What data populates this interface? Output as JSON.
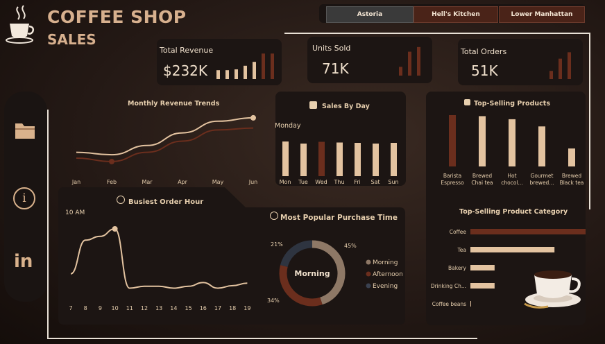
{
  "header": {
    "title": "COFFEE SHOP",
    "subtitle": "SALES"
  },
  "slicer": {
    "tabs": [
      "Astoria",
      "Hell's Kitchen",
      "Lower Manhattan"
    ],
    "selected": "Astoria"
  },
  "kpis": [
    {
      "label": "Total Revenue",
      "value": "$232K",
      "sparkline": [
        0.32,
        0.32,
        0.35,
        0.48,
        0.62,
        0.92,
        0.92
      ]
    },
    {
      "label": "Units Sold",
      "value": "71K",
      "sparkline": [
        0.3,
        0.82,
        0.98
      ]
    },
    {
      "label": "Total Orders",
      "value": "51K",
      "sparkline": [
        0.28,
        0.7,
        0.92
      ]
    }
  ],
  "nav": {
    "icons": [
      "folder-icon",
      "info-icon",
      "linkedin-icon"
    ],
    "linkedin_glyph": "in",
    "info_glyph": "i"
  },
  "colors": {
    "accent_light": "#e3c3a0",
    "accent_dark": "#6b2e1d",
    "bg": "#241915",
    "card": "#1c1513"
  },
  "chart_data": [
    {
      "type": "line",
      "title": "Monthly Revenue Trends",
      "categories": [
        "Jan",
        "Feb",
        "Mar",
        "Apr",
        "May",
        "Jun"
      ],
      "series": [
        {
          "values": [
            0.22,
            0.17,
            0.36,
            0.62,
            0.86,
            0.93
          ]
        },
        {
          "values": [
            0.1,
            0.03,
            0.22,
            0.45,
            0.68,
            0.72
          ]
        }
      ]
    },
    {
      "type": "bar",
      "title": "Sales By Day",
      "categories": [
        "Mon",
        "Tue",
        "Wed",
        "Thu",
        "Fri",
        "Sat",
        "Sun"
      ],
      "values": [
        1.0,
        0.94,
        0.99,
        0.97,
        0.96,
        0.94,
        0.96
      ],
      "highlight": "Wed",
      "tooltip_label": "Monday"
    },
    {
      "type": "bar",
      "title": "Top-Selling Products",
      "categories": [
        "Barista Espresso",
        "Brewed Chai tea",
        "Hot chocol...",
        "Gourmet brewed...",
        "Brewed Black tea"
      ],
      "category_lines": [
        [
          "Barista",
          "Espresso"
        ],
        [
          "Brewed",
          "Chai tea"
        ],
        [
          "Hot",
          "chocol..."
        ],
        [
          "Gourmet",
          "brewed..."
        ],
        [
          "Brewed",
          "Black tea"
        ]
      ],
      "values": [
        1.0,
        0.98,
        0.92,
        0.78,
        0.35
      ]
    },
    {
      "type": "line",
      "title": "Busiest Order Hour",
      "categories": [
        "7",
        "8",
        "9",
        "10",
        "11",
        "12",
        "13",
        "14",
        "15",
        "16",
        "17",
        "18",
        "19"
      ],
      "values": [
        0.28,
        0.82,
        0.88,
        1.0,
        0.05,
        0.08,
        0.08,
        0.05,
        0.08,
        0.14,
        0.05,
        0.09,
        0.13
      ],
      "peak_label": "10 AM"
    },
    {
      "type": "pie",
      "title": "Most Popular Purchase Time",
      "center_label": "Morning",
      "slices": [
        {
          "label": "Morning",
          "value": 45,
          "color": "#8e7866"
        },
        {
          "label": "Afternoon",
          "value": 34,
          "color": "#6b2e1d"
        },
        {
          "label": "Evening",
          "value": 21,
          "color": "#2e3440"
        }
      ],
      "data_labels": [
        "45%",
        "34%",
        "21%"
      ]
    },
    {
      "type": "bar",
      "orientation": "horizontal",
      "title": "Top-Selling Product Category",
      "categories": [
        "Coffee",
        "Tea",
        "Bakery",
        "Drinking Ch...",
        "Coffee beans"
      ],
      "values": [
        1.0,
        0.73,
        0.21,
        0.21,
        0.005
      ]
    }
  ]
}
